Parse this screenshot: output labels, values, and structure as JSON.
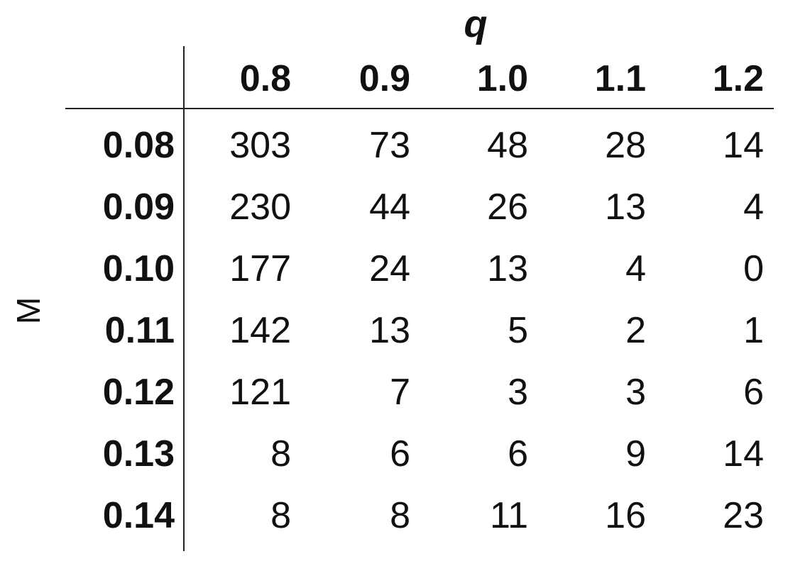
{
  "chart_data": {
    "type": "table",
    "col_axis_label": "q",
    "row_axis_label": "M",
    "columns": [
      "0.8",
      "0.9",
      "1.0",
      "1.1",
      "1.2"
    ],
    "rows": [
      {
        "label": "0.08",
        "values": [
          "303",
          "73",
          "48",
          "28",
          "14"
        ]
      },
      {
        "label": "0.09",
        "values": [
          "230",
          "44",
          "26",
          "13",
          "4"
        ]
      },
      {
        "label": "0.10",
        "values": [
          "177",
          "24",
          "13",
          "4",
          "0"
        ]
      },
      {
        "label": "0.11",
        "values": [
          "142",
          "13",
          "5",
          "2",
          "1"
        ]
      },
      {
        "label": "0.12",
        "values": [
          "121",
          "7",
          "3",
          "3",
          "6"
        ]
      },
      {
        "label": "0.13",
        "values": [
          "8",
          "6",
          "6",
          "9",
          "14"
        ]
      },
      {
        "label": "0.14",
        "values": [
          "8",
          "8",
          "11",
          "16",
          "23"
        ]
      }
    ]
  }
}
